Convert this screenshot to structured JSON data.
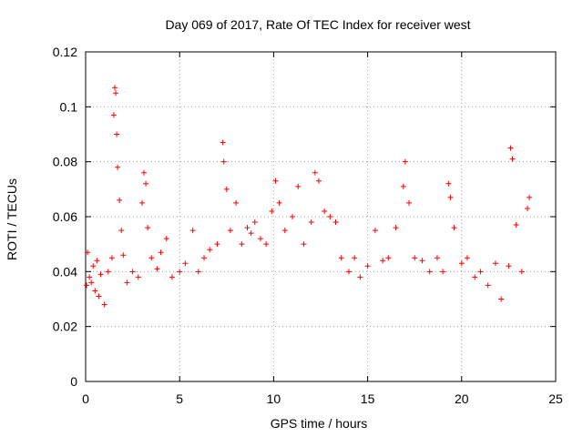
{
  "chart_data": {
    "type": "scatter",
    "title": "Day 069 of 2017, Rate Of TEC Index for receiver west",
    "xlabel": "GPS time / hours",
    "ylabel": "ROTI / TECUs",
    "xlim": [
      0,
      25
    ],
    "ylim": [
      0,
      0.12
    ],
    "x_ticks": [
      0,
      5,
      10,
      15,
      20,
      25
    ],
    "y_ticks": [
      0,
      0.02,
      0.04,
      0.06,
      0.08,
      0.1,
      0.12
    ],
    "x_tick_labels": [
      "0",
      "5",
      "10",
      "15",
      "20",
      "25"
    ],
    "y_tick_labels": [
      "0",
      "0.02",
      "0.04",
      "0.06",
      "0.08",
      "0.1",
      "0.12"
    ],
    "grid": true,
    "legend": "none",
    "marker": "plus",
    "color": "#ff0000",
    "series": [
      {
        "x": [
          0.05,
          0.1,
          0.2,
          0.3,
          0.4,
          0.5,
          0.6,
          0.7,
          0.8,
          1.0,
          1.2,
          1.4,
          1.5,
          1.55,
          1.6,
          1.65,
          1.7,
          1.8,
          1.9,
          2.0,
          2.2,
          2.5,
          2.8,
          3.0,
          3.1,
          3.2,
          3.3,
          3.5,
          3.8,
          4.0,
          4.3,
          4.6,
          5.0,
          5.3,
          5.7,
          6.0,
          6.3,
          6.6,
          7.0,
          7.3,
          7.35,
          7.5,
          7.7,
          8.0,
          8.3,
          8.6,
          8.8,
          9.0,
          9.3,
          9.6,
          9.9,
          10.1,
          10.3,
          10.6,
          11.0,
          11.3,
          11.6,
          12.0,
          12.2,
          12.4,
          12.7,
          13.0,
          13.3,
          13.6,
          14.0,
          14.3,
          14.6,
          15.0,
          15.4,
          15.8,
          16.1,
          16.5,
          16.9,
          17.0,
          17.2,
          17.5,
          17.9,
          18.3,
          18.7,
          19.0,
          19.3,
          19.4,
          19.6,
          20.0,
          20.3,
          20.7,
          21.0,
          21.4,
          21.8,
          22.1,
          22.5,
          22.6,
          22.7,
          22.9,
          23.2,
          23.5,
          23.6
        ],
        "y": [
          0.035,
          0.047,
          0.038,
          0.036,
          0.042,
          0.033,
          0.044,
          0.031,
          0.039,
          0.028,
          0.04,
          0.045,
          0.097,
          0.107,
          0.105,
          0.09,
          0.078,
          0.066,
          0.055,
          0.046,
          0.036,
          0.04,
          0.038,
          0.065,
          0.076,
          0.072,
          0.056,
          0.045,
          0.041,
          0.047,
          0.052,
          0.038,
          0.04,
          0.043,
          0.055,
          0.04,
          0.045,
          0.048,
          0.05,
          0.087,
          0.08,
          0.07,
          0.055,
          0.065,
          0.05,
          0.056,
          0.054,
          0.058,
          0.052,
          0.05,
          0.062,
          0.073,
          0.065,
          0.055,
          0.06,
          0.071,
          0.05,
          0.058,
          0.076,
          0.073,
          0.062,
          0.06,
          0.058,
          0.045,
          0.04,
          0.045,
          0.038,
          0.042,
          0.055,
          0.044,
          0.045,
          0.056,
          0.071,
          0.08,
          0.065,
          0.045,
          0.044,
          0.04,
          0.045,
          0.04,
          0.072,
          0.067,
          0.056,
          0.043,
          0.045,
          0.038,
          0.04,
          0.035,
          0.043,
          0.03,
          0.042,
          0.085,
          0.081,
          0.057,
          0.04,
          0.063,
          0.067
        ]
      }
    ]
  }
}
